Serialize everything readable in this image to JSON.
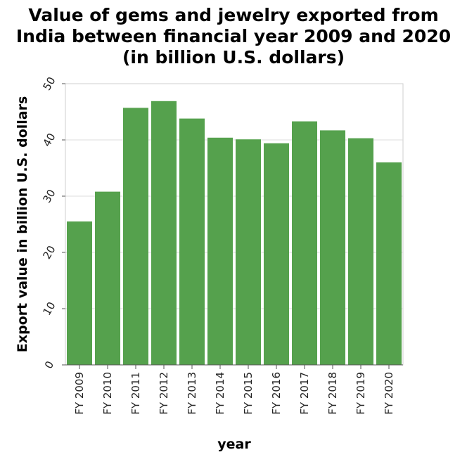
{
  "chart_data": {
    "type": "bar",
    "title_lines": [
      "Value of gems and jewelry exported from",
      "India between financial year 2009 and 2020",
      "(in billion U.S. dollars)"
    ],
    "xlabel": "year",
    "ylabel": "Export value in billion U.S. dollars",
    "categories": [
      "FY 2009",
      "FY 2010",
      "FY 2011",
      "FY 2012",
      "FY 2013",
      "FY 2014",
      "FY 2015",
      "FY 2016",
      "FY 2017",
      "FY 2018",
      "FY 2019",
      "FY 2020"
    ],
    "values": [
      25.5,
      30.8,
      45.7,
      46.9,
      43.8,
      40.4,
      40.1,
      39.4,
      43.3,
      41.7,
      40.3,
      36.0
    ],
    "ylim": [
      0,
      50
    ],
    "yticks": [
      0,
      10,
      20,
      30,
      40,
      50
    ],
    "grid": true,
    "bar_color": "#55a14d"
  }
}
